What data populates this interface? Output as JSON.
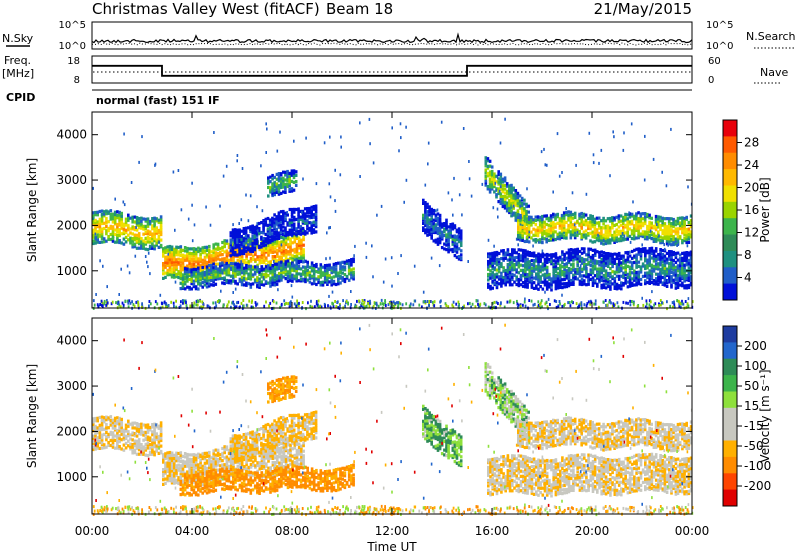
{
  "header": {
    "station": "Christmas Valley West (fitACF)",
    "beam": "Beam 18",
    "date": "21/May/2015"
  },
  "info_panels": {
    "nsky": {
      "label": "N.Sky",
      "ticks": [
        "10^5",
        "10^0"
      ]
    },
    "nsearch": {
      "label": "N.Search",
      "ticks": [
        "10^5",
        "10^0"
      ]
    },
    "freq": {
      "label_line1": "Freq.",
      "label_line2": "[MHz]",
      "ticks": [
        "18",
        "8"
      ],
      "right_ticks": [
        "60",
        "0"
      ]
    },
    "nave": {
      "label": "Nave"
    },
    "cpid": {
      "label": "CPID",
      "value": "normal (fast) 151 IF"
    }
  },
  "colorbars": {
    "power": {
      "label": "Power [dB]",
      "ticks": [
        "28",
        "24",
        "20",
        "16",
        "12",
        "8",
        "4"
      ],
      "colors": [
        "#e8000b",
        "#ff5a00",
        "#ff8c00",
        "#ffb900",
        "#f0e000",
        "#9ad400",
        "#3cb44b",
        "#2e8b57",
        "#1e9080",
        "#205ec8",
        "#0010d8"
      ]
    },
    "velocity": {
      "label": "Velocity [m s⁻¹]",
      "ticks": [
        "200",
        "100",
        "50",
        "15",
        "-15",
        "-50",
        "-100",
        "-200"
      ],
      "colors": [
        "#1e3ca0",
        "#2266cc",
        "#2e8b57",
        "#3cb44b",
        "#8ee03c",
        "#c8c8c0",
        "#c8c8c0",
        "#ffb000",
        "#ff8c00",
        "#ff4500",
        "#e00000"
      ]
    }
  },
  "chart_data": {
    "type": "heatmap",
    "panels": [
      "Power",
      "Velocity"
    ],
    "xlabel": "Time UT",
    "xticks": [
      "00:00",
      "04:00",
      "08:00",
      "12:00",
      "16:00",
      "20:00",
      "00:00"
    ],
    "xlim_hours": [
      0,
      24
    ],
    "ylabel": "Slant Range [km]",
    "yticks": [
      "1000",
      "2000",
      "3000",
      "4000"
    ],
    "ylim_km": [
      180,
      4500
    ],
    "frequency_mhz": [
      {
        "start_h": 0,
        "end_h": 2.8,
        "value": 14.5
      },
      {
        "start_h": 2.8,
        "end_h": 15.0,
        "value": 10.5
      },
      {
        "start_h": 15.0,
        "end_h": 24,
        "value": 14.5
      }
    ],
    "echo_bands": [
      {
        "t0": 0.0,
        "t1": 2.8,
        "r0": 1980,
        "r1": 1880,
        "w": 280,
        "p": 22,
        "v": -10
      },
      {
        "t0": 2.8,
        "t1": 8.5,
        "r0": 1150,
        "r1": 1550,
        "w": 320,
        "p": 26,
        "v": -10
      },
      {
        "t0": 3.5,
        "t1": 10.5,
        "r0": 900,
        "r1": 1020,
        "w": 200,
        "p": 14,
        "v": -60
      },
      {
        "t0": 5.5,
        "t1": 9.0,
        "r0": 1650,
        "r1": 2250,
        "w": 240,
        "p": 9,
        "v": -20
      },
      {
        "t0": 7.0,
        "t1": 8.2,
        "r0": 2800,
        "r1": 3100,
        "w": 220,
        "p": 14,
        "v": -50
      },
      {
        "t0": 13.2,
        "t1": 14.8,
        "r0": 2300,
        "r1": 1500,
        "w": 300,
        "p": 11,
        "v": 30
      },
      {
        "t0": 15.7,
        "t1": 17.5,
        "r0": 3300,
        "r1": 2000,
        "w": 300,
        "p": 18,
        "v": 20
      },
      {
        "t0": 15.8,
        "t1": 24.0,
        "r0": 1050,
        "r1": 1100,
        "w": 350,
        "p": 12,
        "v": -10
      },
      {
        "t0": 17.0,
        "t1": 24.0,
        "r0": 2000,
        "r1": 1950,
        "w": 250,
        "p": 21,
        "v": -10
      }
    ]
  }
}
